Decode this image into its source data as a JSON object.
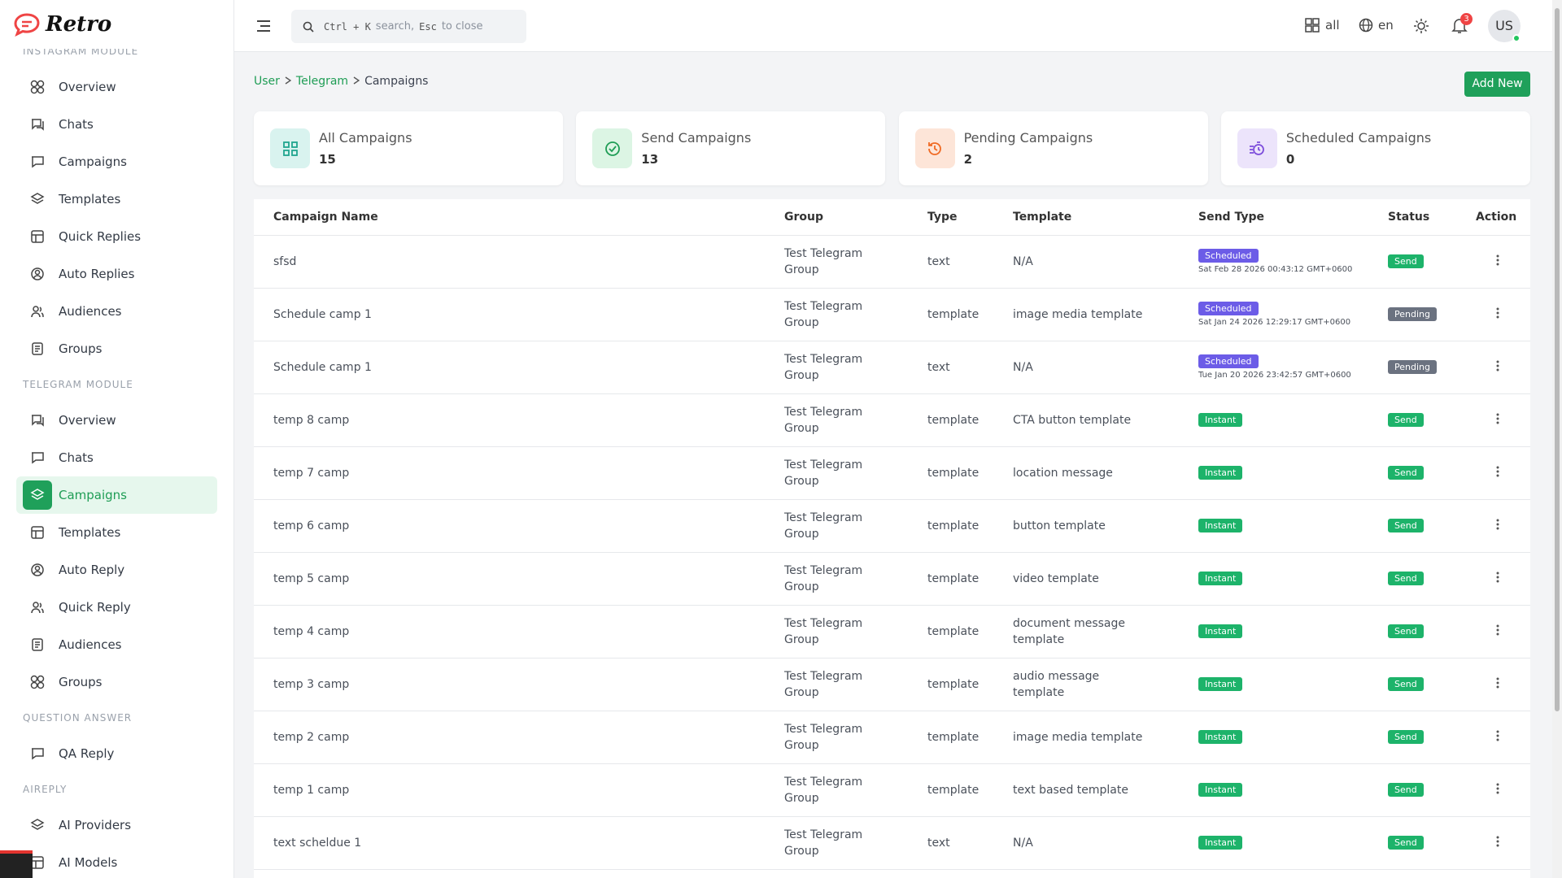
{
  "header": {
    "logo": "Retro",
    "search": {
      "keys1": "Ctrl + K",
      "text1": "search,",
      "keys2": "Esc",
      "text2": "to close"
    },
    "workspace": "all",
    "language": "en",
    "notifications": 3,
    "avatar": "US"
  },
  "sidebar": {
    "sections": [
      {
        "title": "INSTAGRAM MODULE",
        "items": [
          {
            "label": "Overview"
          },
          {
            "label": "Chats"
          },
          {
            "label": "Campaigns"
          },
          {
            "label": "Templates"
          },
          {
            "label": "Quick Replies"
          },
          {
            "label": "Auto Replies"
          },
          {
            "label": "Audiences"
          },
          {
            "label": "Groups"
          }
        ]
      },
      {
        "title": "TELEGRAM MODULE",
        "items": [
          {
            "label": "Overview"
          },
          {
            "label": "Chats"
          },
          {
            "label": "Campaigns",
            "active": true
          },
          {
            "label": "Templates"
          },
          {
            "label": "Auto Reply"
          },
          {
            "label": "Quick Reply"
          },
          {
            "label": "Audiences"
          },
          {
            "label": "Groups"
          }
        ]
      },
      {
        "title": "QUESTION ANSWER",
        "items": [
          {
            "label": "QA Reply"
          }
        ]
      },
      {
        "title": "AIREPLY",
        "items": [
          {
            "label": "AI Providers"
          },
          {
            "label": "AI Models"
          }
        ]
      }
    ]
  },
  "breadcrumb": [
    "User",
    "Telegram",
    "Campaigns"
  ],
  "add_button": "Add New",
  "stats": [
    {
      "label": "All Campaigns",
      "value": 15
    },
    {
      "label": "Send Campaigns",
      "value": 13
    },
    {
      "label": "Pending Campaigns",
      "value": 2
    },
    {
      "label": "Scheduled Campaigns",
      "value": 0
    }
  ],
  "table": {
    "columns": [
      "Campaign Name",
      "Group",
      "Type",
      "Template",
      "Send Type",
      "Status",
      "Action"
    ],
    "rows": [
      {
        "name": "sfsd",
        "group": "Test Telegram Group",
        "type": "text",
        "template": "N/A",
        "send_type": "Scheduled",
        "send_time": "Sat Feb 28 2026 00:43:12 GMT+0600",
        "status": "Send"
      },
      {
        "name": "Schedule camp 1",
        "group": "Test Telegram Group",
        "type": "template",
        "template": "image media template",
        "send_type": "Scheduled",
        "send_time": "Sat Jan 24 2026 12:29:17 GMT+0600",
        "status": "Pending"
      },
      {
        "name": "Schedule camp 1",
        "group": "Test Telegram Group",
        "type": "text",
        "template": "N/A",
        "send_type": "Scheduled",
        "send_time": "Tue Jan 20 2026 23:42:57 GMT+0600",
        "status": "Pending"
      },
      {
        "name": "temp 8 camp",
        "group": "Test Telegram Group",
        "type": "template",
        "template": "CTA button template",
        "send_type": "Instant",
        "status": "Send"
      },
      {
        "name": "temp 7 camp",
        "group": "Test Telegram Group",
        "type": "template",
        "template": "location message",
        "send_type": "Instant",
        "status": "Send"
      },
      {
        "name": "temp 6 camp",
        "group": "Test Telegram Group",
        "type": "template",
        "template": "button template",
        "send_type": "Instant",
        "status": "Send"
      },
      {
        "name": "temp 5 camp",
        "group": "Test Telegram Group",
        "type": "template",
        "template": "video template",
        "send_type": "Instant",
        "status": "Send"
      },
      {
        "name": "temp 4 camp",
        "group": "Test Telegram Group",
        "type": "template",
        "template": "document message template",
        "send_type": "Instant",
        "status": "Send"
      },
      {
        "name": "temp 3 camp",
        "group": "Test Telegram Group",
        "type": "template",
        "template": "audio message template",
        "send_type": "Instant",
        "status": "Send"
      },
      {
        "name": "temp 2 camp",
        "group": "Test Telegram Group",
        "type": "template",
        "template": "image media template",
        "send_type": "Instant",
        "status": "Send"
      },
      {
        "name": "temp 1 camp",
        "group": "Test Telegram Group",
        "type": "template",
        "template": "text based template",
        "send_type": "Instant",
        "status": "Send"
      },
      {
        "name": "text scheldue 1",
        "group": "Test Telegram Group",
        "type": "text",
        "template": "N/A",
        "send_type": "Instant",
        "status": "Send"
      }
    ]
  }
}
